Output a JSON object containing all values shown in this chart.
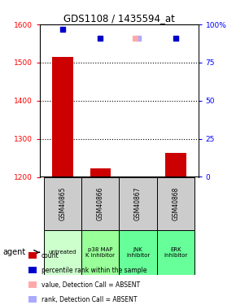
{
  "title": "GDS1108 / 1435594_at",
  "samples": [
    "GSM40865",
    "GSM40866",
    "GSM40867",
    "GSM40868"
  ],
  "agents": [
    "untreated",
    "p38 MAP\nK inhibitor",
    "JNK\ninhibitor",
    "ERK\ninhibitor"
  ],
  "bar_values": [
    1515,
    1222,
    1202,
    1262
  ],
  "bar_bottom": 1200,
  "ylim_left": [
    1200,
    1600
  ],
  "ylim_right": [
    0,
    100
  ],
  "yticks_left": [
    1200,
    1300,
    1400,
    1500,
    1600
  ],
  "yticks_right": [
    0,
    25,
    50,
    75,
    100
  ],
  "dot_ranks": [
    97,
    91,
    91,
    91
  ],
  "absent_sample_idx": [
    2
  ],
  "bar_color": "#cc0000",
  "dot_color_present": "#0000cc",
  "dot_color_absent_value": "#ffaaaa",
  "dot_color_absent_rank": "#aaaaff",
  "sample_bg_color": "#cccccc",
  "agent_bg_colors": [
    "#ccffcc",
    "#99ff99",
    "#66ff99",
    "#66ff99"
  ],
  "legend_items": [
    {
      "color": "#cc0000",
      "label": "count"
    },
    {
      "color": "#0000cc",
      "label": "percentile rank within the sample"
    },
    {
      "color": "#ffaaaa",
      "label": "value, Detection Call = ABSENT"
    },
    {
      "color": "#aaaaff",
      "label": "rank, Detection Call = ABSENT"
    }
  ],
  "gridline_ticks": [
    1300,
    1400,
    1500
  ]
}
